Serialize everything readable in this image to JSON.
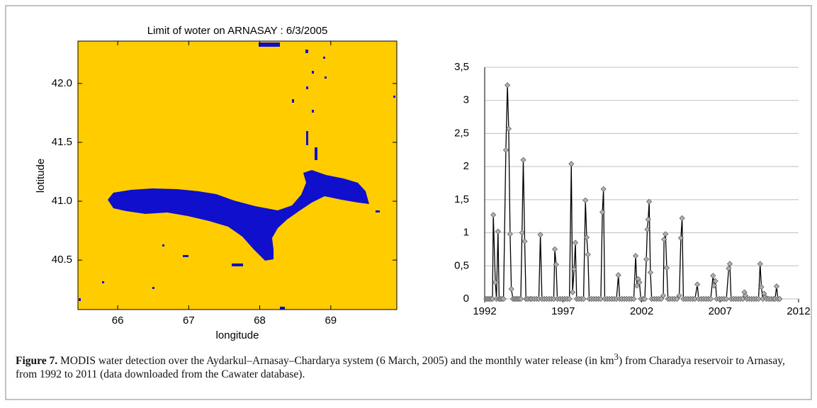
{
  "chart_data": [
    {
      "type": "map",
      "title": "Limit of woter on ARNASAY : 6/3/2005",
      "xlabel": "longitude",
      "ylabel": "lotitude",
      "xlim": [
        65.44,
        69.93
      ],
      "ylim": [
        40.08,
        42.36
      ],
      "xticks": [
        66,
        67,
        68,
        69
      ],
      "yticks": [
        {
          "value": 40.5,
          "label": "40.5"
        },
        {
          "value": 41,
          "label": "41.0"
        },
        {
          "value": 41.5,
          "label": "41.5"
        },
        {
          "value": 42,
          "label": "42.0"
        }
      ],
      "background_color": "#ffcc00",
      "water_color": "#1010cc"
    },
    {
      "type": "line",
      "x": [
        1992.1,
        1992.2,
        1992.3,
        1992.4,
        1992.5,
        1992.55,
        1992.68,
        1992.75,
        1992.85,
        1992.92,
        1993.0,
        1993.1,
        1993.2,
        1993.35,
        1993.45,
        1993.53,
        1993.62,
        1993.7,
        1993.8,
        1993.9,
        1994.0,
        1994.1,
        1994.2,
        1994.3,
        1994.38,
        1994.46,
        1994.55,
        1994.63,
        1994.75,
        1994.9,
        1995.0,
        1995.15,
        1995.3,
        1995.45,
        1995.55,
        1995.65,
        1995.8,
        1995.95,
        1996.1,
        1996.25,
        1996.4,
        1996.47,
        1996.55,
        1996.63,
        1996.8,
        1996.95,
        1997.1,
        1997.25,
        1997.4,
        1997.52,
        1997.6,
        1997.7,
        1997.78,
        1997.86,
        1998.0,
        1998.15,
        1998.3,
        1998.42,
        1998.5,
        1998.58,
        1998.66,
        1998.8,
        1998.95,
        1999.1,
        1999.25,
        1999.4,
        1999.5,
        1999.57,
        1999.65,
        1999.8,
        1999.95,
        2000.1,
        2000.25,
        2000.4,
        2000.52,
        2000.6,
        2000.75,
        2000.9,
        2001.05,
        2001.2,
        2001.35,
        2001.5,
        2001.62,
        2001.7,
        2001.78,
        2001.86,
        2001.95,
        2002.1,
        2002.2,
        2002.3,
        2002.36,
        2002.42,
        2002.48,
        2002.56,
        2002.64,
        2002.8,
        2002.95,
        2003.1,
        2003.25,
        2003.38,
        2003.43,
        2003.52,
        2003.6,
        2003.68,
        2003.8,
        2003.95,
        2004.1,
        2004.25,
        2004.4,
        2004.5,
        2004.58,
        2004.66,
        2004.8,
        2004.95,
        2005.1,
        2005.25,
        2005.4,
        2005.55,
        2005.63,
        2005.8,
        2005.95,
        2006.1,
        2006.25,
        2006.4,
        2006.55,
        2006.62,
        2006.7,
        2006.78,
        2006.95,
        2007.1,
        2007.25,
        2007.4,
        2007.55,
        2007.62,
        2007.7,
        2007.85,
        2008.0,
        2008.15,
        2008.3,
        2008.45,
        2008.55,
        2008.62,
        2008.7,
        2008.85,
        2009.0,
        2009.15,
        2009.3,
        2009.45,
        2009.55,
        2009.63,
        2009.72,
        2009.8,
        2009.88,
        2009.95,
        2010.1,
        2010.25,
        2010.4,
        2010.5,
        2010.6,
        2010.68,
        2010.8
      ],
      "series": [
        {
          "color": "#000000",
          "marker_color": "#b0b0b0",
          "values": [
            0,
            0,
            0,
            0,
            0,
            1.27,
            0.25,
            0,
            1.02,
            0,
            0,
            0,
            0,
            2.25,
            3.23,
            2.57,
            0.98,
            0.15,
            0,
            0,
            0,
            0,
            0,
            0,
            1.0,
            2.1,
            0.87,
            0,
            0,
            0,
            0,
            0,
            0,
            0,
            0.97,
            0,
            0,
            0,
            0,
            0,
            0,
            0.75,
            0.52,
            0,
            0,
            0,
            0,
            0,
            0,
            2.04,
            0.1,
            0.45,
            0.85,
            0,
            0,
            0,
            0,
            1.49,
            0.93,
            0.67,
            0,
            0,
            0,
            0,
            0,
            0,
            1.31,
            1.66,
            0,
            0,
            0,
            0,
            0,
            0,
            0.36,
            0,
            0,
            0,
            0,
            0,
            0,
            0,
            0.65,
            0.2,
            0.3,
            0.25,
            0,
            0,
            0,
            0.6,
            1.05,
            1.2,
            1.47,
            0.4,
            0,
            0,
            0,
            0,
            0,
            0.05,
            0.9,
            0.98,
            0.47,
            0,
            0,
            0,
            0,
            0,
            0.05,
            0.92,
            1.22,
            0,
            0,
            0,
            0,
            0,
            0,
            0.22,
            0,
            0,
            0,
            0,
            0,
            0,
            0.35,
            0.2,
            0.27,
            0,
            0,
            0,
            0,
            0,
            0.46,
            0.53,
            0,
            0,
            0,
            0,
            0,
            0,
            0.1,
            0.05,
            0,
            0,
            0,
            0,
            0,
            0,
            0.53,
            0.18,
            0,
            0.08,
            0.03,
            0,
            0,
            0,
            0,
            0,
            0.19,
            0,
            0
          ]
        }
      ],
      "xlim": [
        1992,
        2012
      ],
      "xticks": [
        1992,
        1997,
        2002,
        2007,
        2012
      ],
      "ylim": [
        0,
        3.5
      ],
      "yticks": [
        0,
        {
          "value": 0.5,
          "label": "0,5"
        },
        1,
        {
          "value": 1.5,
          "label": "1,5"
        },
        2,
        {
          "value": 2.5,
          "label": "2,5"
        },
        3,
        {
          "value": 3.5,
          "label": "3,5"
        }
      ],
      "grid": true,
      "grid_color": "#bfbfbf"
    }
  ],
  "caption": {
    "label": "Figure 7.",
    "text_before": " MODIS water detection over the Aydarkul–Arnasay–Chardarya system (6 March, 2005) and the monthly water release (in km",
    "superscript": "3",
    "text_after": ") from Charadya reservoir to Arnasay, from 1992 to 2011 (data downloaded from the Cawater database)."
  }
}
